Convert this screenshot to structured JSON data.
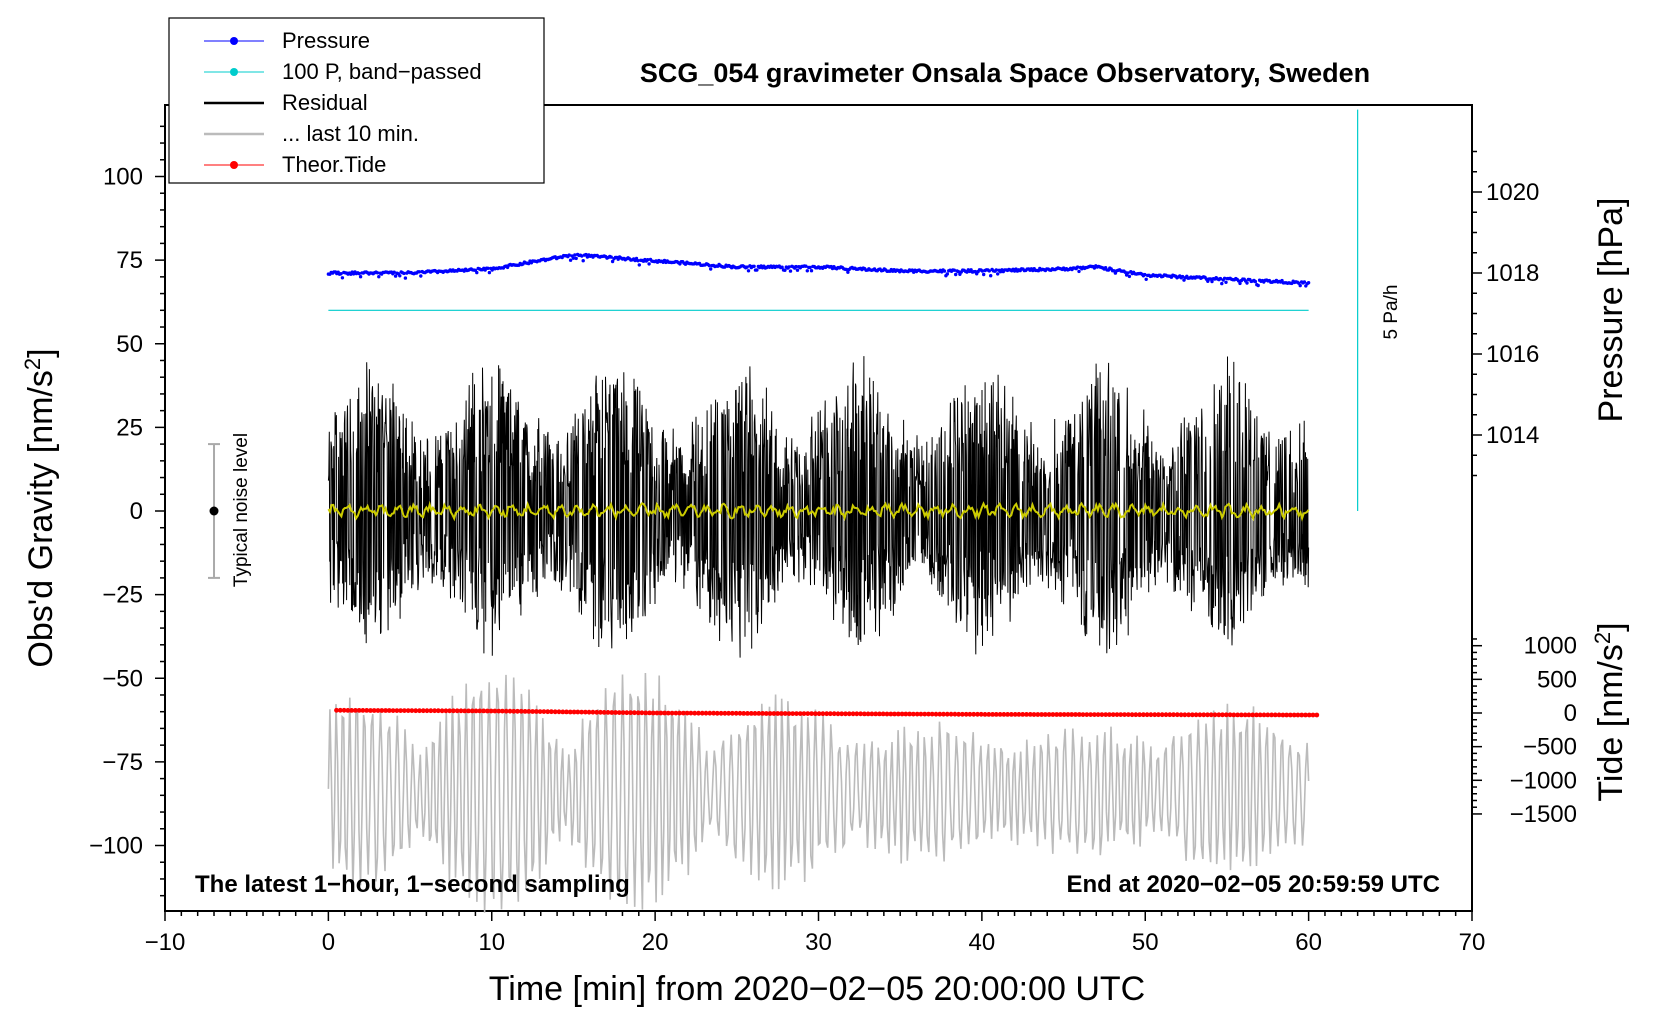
{
  "chart_data": {
    "type": "line",
    "title": "SCG_054 gravimeter Onsala Space Observatory, Sweden",
    "xlabel": "Time [min] from 2020−02−05 20:00:00 UTC",
    "xlim": [
      -10,
      70
    ],
    "x_ticks": [
      -10,
      0,
      10,
      20,
      30,
      40,
      50,
      60,
      70
    ],
    "x_tick_labels": [
      "−10",
      "0",
      "10",
      "20",
      "30",
      "40",
      "50",
      "60",
      "70"
    ],
    "left_axis": {
      "label_main": "Obs'd Gravity [nm/s",
      "label_sup": "2",
      "label_end": "]",
      "ylim": [
        -120,
        120
      ],
      "ticks": [
        100,
        75,
        50,
        25,
        0,
        -25,
        -50,
        -75,
        -100
      ],
      "tick_labels": [
        "100",
        "75",
        "50",
        "25",
        "0",
        "−25",
        "−50",
        "−75",
        "−100"
      ]
    },
    "right_axis_pressure": {
      "label": "Pressure [hPa]",
      "ticks": [
        1020,
        1018,
        1016,
        1014
      ],
      "tick_labels": [
        "1020",
        "1018",
        "1016",
        "1014"
      ]
    },
    "right_axis_tide": {
      "label_main": "Tide [nm/s",
      "label_sup": "2",
      "label_end": "]",
      "ticks": [
        1000,
        500,
        0,
        -500,
        -1000,
        -1500
      ],
      "tick_labels": [
        "1000",
        "500",
        "0",
        "−500",
        "−1000",
        "−1500"
      ]
    },
    "legend": {
      "placement": "top-left",
      "entries": [
        {
          "label": "Pressure",
          "color": "#0000ff",
          "marker": true
        },
        {
          "label": "100 P, band−passed",
          "color": "#00cccc",
          "marker": true
        },
        {
          "label": "Residual",
          "color": "#000000",
          "marker": false
        },
        {
          "label": "... last 10 min.",
          "color": "#bbbbbb",
          "marker": false
        },
        {
          "label": "Theor.Tide",
          "color": "#ff0000",
          "marker": true
        }
      ]
    },
    "series": [
      {
        "name": "Pressure",
        "unit": "hPa",
        "color": "#0000ff",
        "x": [
          0,
          5,
          10,
          15,
          20,
          25,
          30,
          35,
          40,
          45,
          47,
          50,
          55,
          60
        ],
        "values": [
          1018.0,
          1018.0,
          1018.1,
          1018.45,
          1018.3,
          1018.15,
          1018.15,
          1018.05,
          1018.05,
          1018.1,
          1018.15,
          1017.95,
          1017.85,
          1017.75
        ]
      },
      {
        "name": "100 P, band-passed",
        "unit": "nm/s2",
        "color": "#00cccc",
        "x": [
          0,
          60
        ],
        "values": [
          60,
          60
        ]
      },
      {
        "name": "Residual",
        "unit": "nm/s2",
        "color": "#000000",
        "x": [
          0,
          60
        ],
        "envelope": [
          -45,
          48
        ]
      },
      {
        "name": "Residual smoothed",
        "unit": "nm/s2",
        "color": "#cccc00",
        "x": [
          0,
          60
        ],
        "values": [
          0,
          0
        ]
      },
      {
        "name": "... last 10 min.",
        "unit": "nm/s2",
        "color": "#bbbbbb",
        "x": [
          0,
          60
        ],
        "envelope": [
          -120,
          -48
        ]
      },
      {
        "name": "Theor.Tide",
        "unit": "nm/s2",
        "color": "#ff0000",
        "x": [
          0.5,
          10,
          20,
          30,
          40,
          50,
          60.5
        ],
        "values": [
          40,
          30,
          0,
          -10,
          -20,
          -25,
          -30
        ]
      }
    ],
    "noise_indicator": {
      "label": "Typical noise level",
      "x": -7,
      "range": [
        -20,
        20
      ]
    },
    "rate_scale": {
      "label": "5 Pa/h",
      "x": 63,
      "range": [
        0,
        120
      ]
    },
    "annotations": {
      "bottom_left": "The latest 1−hour, 1−second sampling",
      "bottom_right": "End at 2020−02−05 20:59:59 UTC"
    }
  }
}
